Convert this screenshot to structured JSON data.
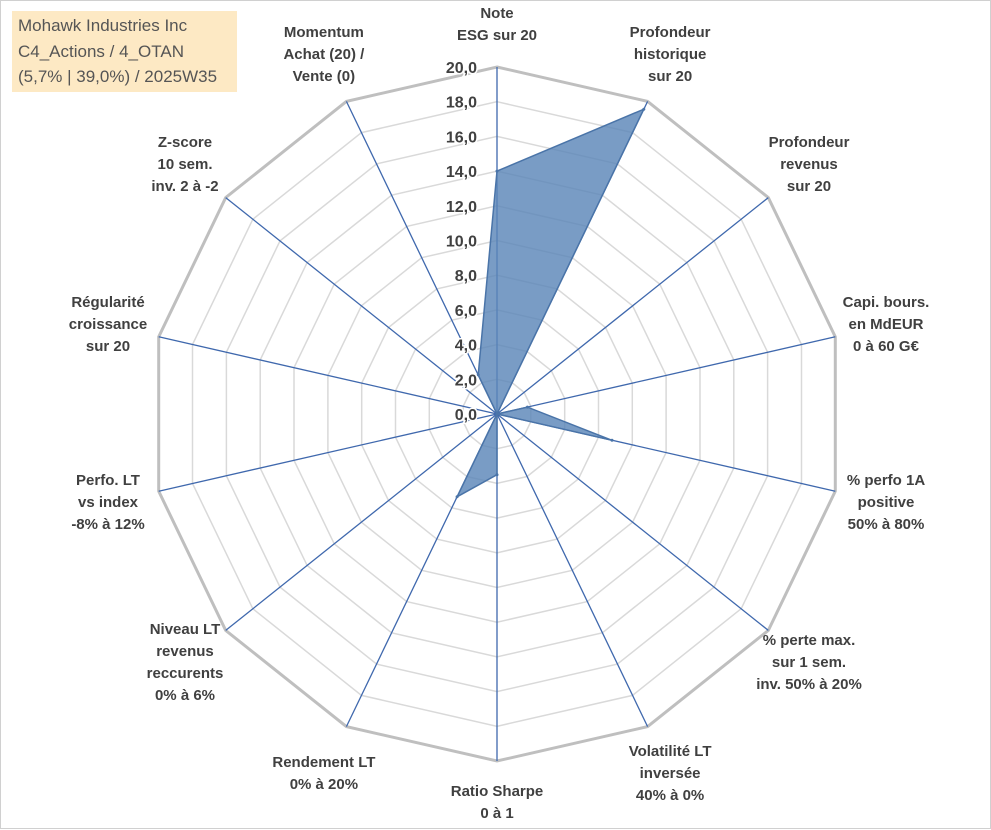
{
  "title_box": {
    "line1": "Mohawk Industries Inc",
    "line2": "C4_Actions / 4_OTAN",
    "line3": "(5,7% | 39,0%) / 2025W35",
    "background": "#fde9c4"
  },
  "chart_data": {
    "type": "radar",
    "rlim": [
      0,
      20
    ],
    "ticks": [
      "0,0",
      "2,0",
      "4,0",
      "6,0",
      "8,0",
      "10,0",
      "12,0",
      "14,0",
      "16,0",
      "18,0",
      "20,0"
    ],
    "grid": true,
    "axes": [
      "Note\nESG sur 20",
      "Profondeur\nhistorique\nsur 20",
      "Profondeur\nrevenus\nsur 20",
      "Capi. bours.\nen MdEUR\n0 à 60 G€",
      "% perfo 1A\npositive\n50% à 80%",
      "% perte max.\nsur 1 sem.\ninv. 50% à 20%",
      "Volatilité LT\ninversée\n40% à 0%",
      "Ratio Sharpe\n0 à 1",
      "Rendement LT\n0% à 20%",
      "Niveau LT\nrevenus\nreccurents\n0% à 6%",
      "Perfo. LT\nvs index\n-8% à 12%",
      "Régularité\ncroissance\nsur 20",
      "Z-score\n10 sem.\ninv. 2 à -2",
      "Momentum\nAchat (20) /\nVente (0)"
    ],
    "values": [
      14.0,
      19.5,
      0.0,
      1.8,
      6.8,
      0.0,
      0.0,
      3.5,
      5.3,
      0.0,
      0.0,
      0.0,
      0.0,
      2.5
    ],
    "colors": {
      "fill": "#5b86b8",
      "line": "#4a74a8",
      "spokes": "#3f68ad",
      "grid": "#d9d9d9",
      "outer": "#bfbfbf"
    }
  }
}
